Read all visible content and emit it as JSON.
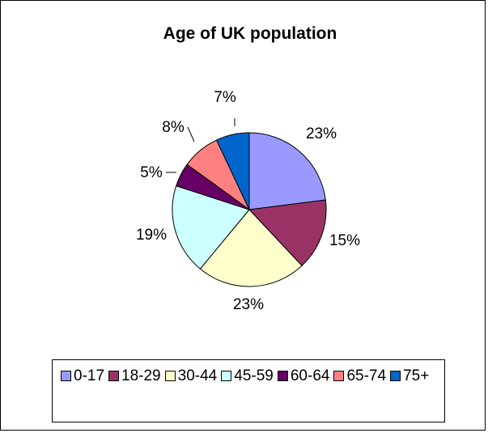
{
  "chart_data": {
    "type": "pie",
    "title": "Age of UK population",
    "categories": [
      "0-17",
      "18-29",
      "30-44",
      "45-59",
      "60-64",
      "65-74",
      "75+"
    ],
    "values": [
      23,
      15,
      23,
      19,
      5,
      8,
      7
    ],
    "labels": [
      "23%",
      "15%",
      "23%",
      "19%",
      "5%",
      "8%",
      "7%"
    ],
    "colors": [
      "#9999ff",
      "#993366",
      "#ffffcc",
      "#ccffff",
      "#660066",
      "#ff8080",
      "#0066cc"
    ],
    "start_angle_deg": 0,
    "direction": "clockwise",
    "legend": "bottom"
  }
}
